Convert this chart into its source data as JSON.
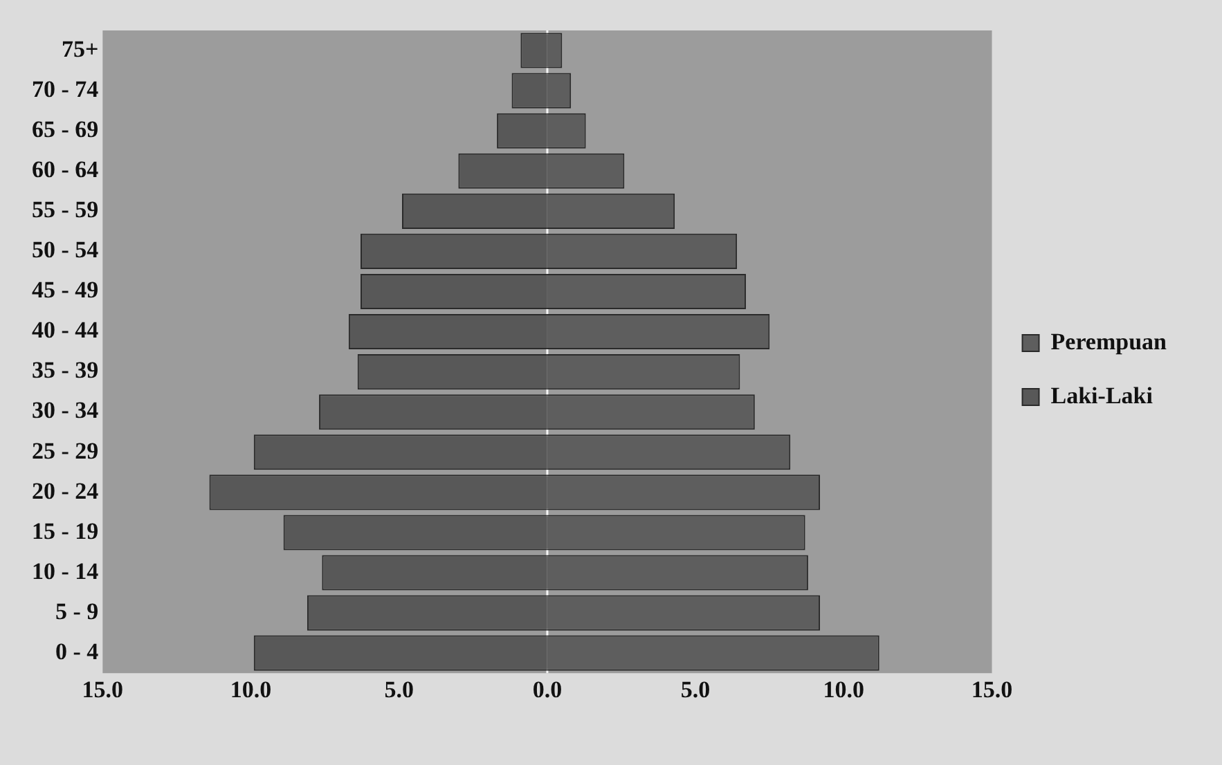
{
  "chart_data": {
    "type": "bar",
    "orientation": "horizontal",
    "stacked": true,
    "grid": false,
    "legend": "right",
    "categories": [
      "75+",
      "70 - 74",
      "65 - 69",
      "60 - 64",
      "55 - 59",
      "50 - 54",
      "45 - 49",
      "40 - 44",
      "35 - 39",
      "30 - 34",
      "25 - 29",
      "20 - 24",
      "15 - 19",
      "10 - 14",
      "5 - 9",
      "0 - 4"
    ],
    "series": [
      {
        "name": "Perempuan",
        "color": "#5e5e5e",
        "values": [
          0.5,
          0.8,
          1.3,
          2.6,
          4.3,
          6.4,
          6.7,
          7.5,
          6.5,
          7.0,
          8.2,
          9.2,
          8.7,
          8.8,
          9.2,
          11.2
        ]
      },
      {
        "name": "Laki-Laki",
        "color": "#585858",
        "values": [
          -0.9,
          -1.2,
          -1.7,
          -3.0,
          -4.9,
          -6.3,
          -6.3,
          -6.7,
          -6.4,
          -7.7,
          -9.9,
          -11.4,
          -8.9,
          -7.6,
          -8.1,
          -9.9
        ]
      }
    ],
    "ref_lines": [
      {
        "axis": "x",
        "value": 0,
        "color": "#f4f4f4"
      }
    ],
    "xlim": [
      -15,
      15
    ],
    "xticks": [
      {
        "value": -15,
        "label": "15.0"
      },
      {
        "value": -10,
        "label": "10.0"
      },
      {
        "value": -5,
        "label": "5.0"
      },
      {
        "value": 0,
        "label": "0.0"
      },
      {
        "value": 5,
        "label": "5.0"
      },
      {
        "value": 10,
        "label": "10.0"
      },
      {
        "value": 15,
        "label": "15.0"
      }
    ]
  }
}
